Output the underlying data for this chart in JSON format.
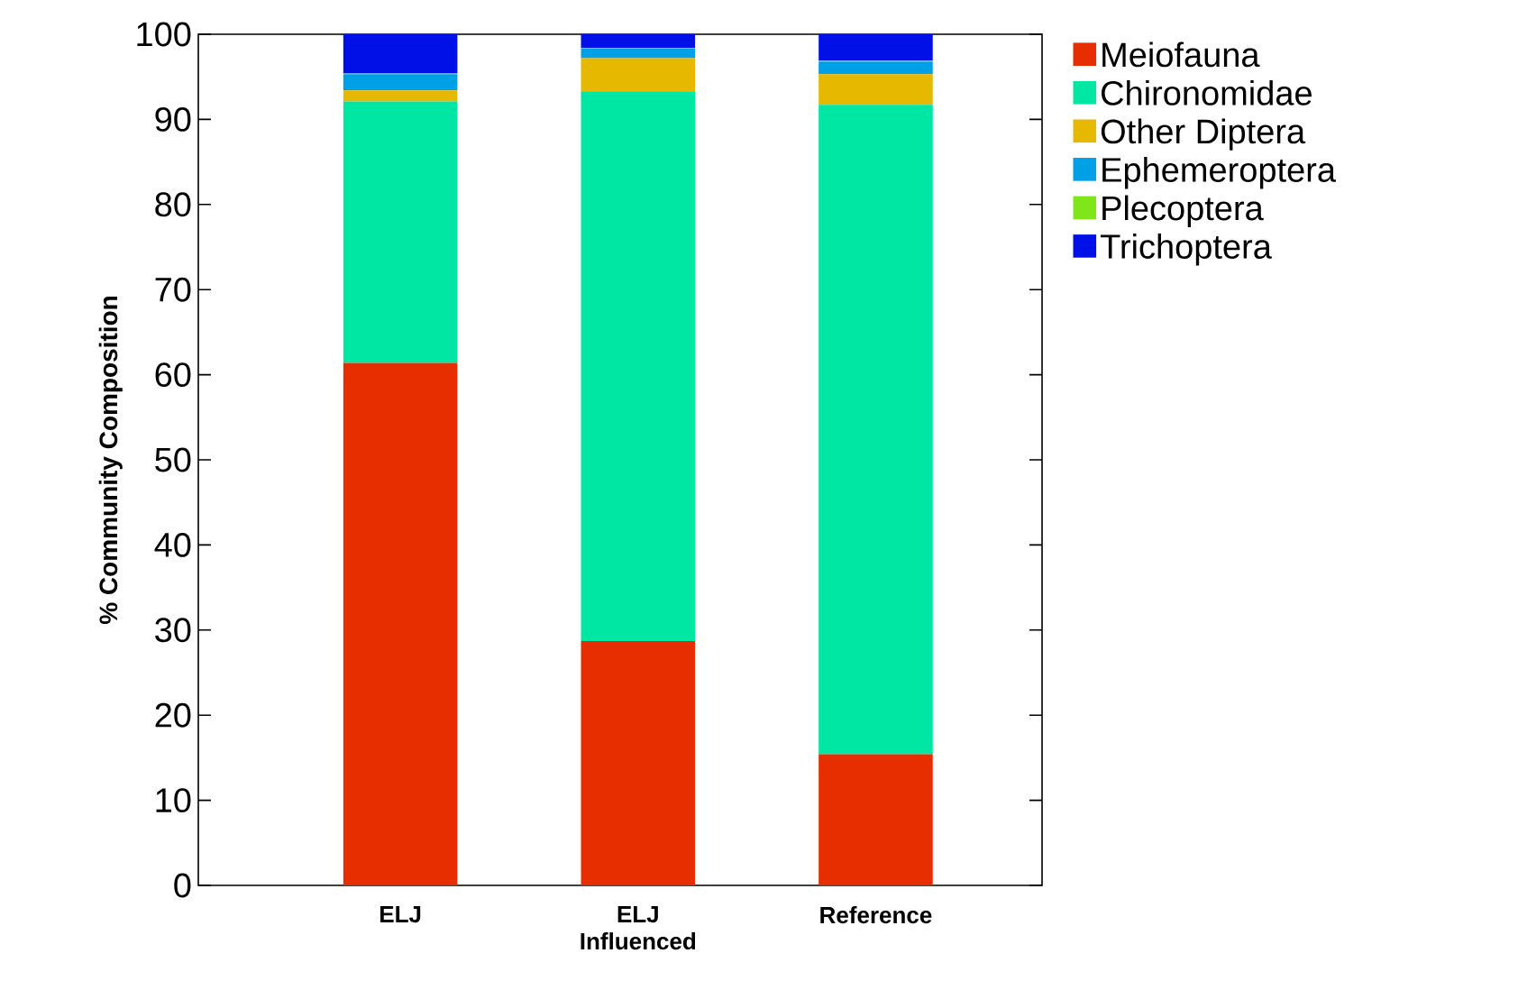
{
  "chart_data": {
    "type": "bar",
    "stacked": true,
    "ylabel": "% Community Composition",
    "categories": [
      "ELJ",
      "ELJ Influenced",
      "Reference"
    ],
    "series": [
      {
        "name": "Meiofauna",
        "color": "#e62e00",
        "values": [
          61.4,
          28.7,
          15.4
        ]
      },
      {
        "name": "Chironomidae",
        "color": "#00e6a3",
        "values": [
          30.7,
          64.6,
          76.3
        ]
      },
      {
        "name": "Other Diptera",
        "color": "#e6b800",
        "values": [
          1.3,
          3.9,
          3.6
        ]
      },
      {
        "name": "Ephemeroptera",
        "color": "#00a0e6",
        "values": [
          1.9,
          1.1,
          1.5
        ]
      },
      {
        "name": "Plecoptera",
        "color": "#7fe61a",
        "values": [
          0.1,
          0.1,
          0.1
        ]
      },
      {
        "name": "Trichoptera",
        "color": "#0010e6",
        "values": [
          4.6,
          1.6,
          3.1
        ]
      }
    ],
    "ylim": [
      0,
      100
    ],
    "yticks": [
      0,
      10,
      20,
      30,
      40,
      50,
      60,
      70,
      80,
      90,
      100
    ],
    "grid": false,
    "legend": "top right"
  }
}
